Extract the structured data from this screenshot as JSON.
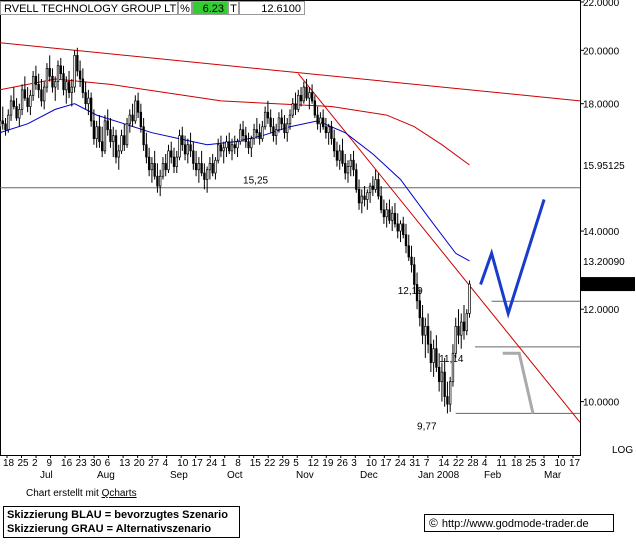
{
  "header": {
    "name": "RVELL TECHNOLOGY GROUP LTD",
    "pct_label": "%",
    "pct_value": "6.23",
    "t_label": "T",
    "price": "12.6100"
  },
  "colors": {
    "pct_bg": "#33cc33",
    "ma_red": "#cc0000",
    "ma_blue": "#0000cc",
    "trend_red": "#cc0000",
    "scenario_blue": "#1a3ccc",
    "scenario_gray": "#aaaaaa",
    "badge_red_text": "#ee0000",
    "badge_black_bg": "#000000"
  },
  "footer": {
    "credit_prefix": "Chart erstellt mit",
    "credit_link": "Qcharts",
    "note_line1": "Skizzierung BLAU = bevorzugtes Szenario",
    "note_line2": "Skizzierung GRAU = Alternativszenario",
    "copyright_icon": "copyright-icon",
    "site": "http://www.godmode-trader.de"
  },
  "chart_data": {
    "type": "candlestick",
    "y_scale": "log",
    "ylim": [
      9.0,
      22.0
    ],
    "yticks": [
      {
        "v": 22.0,
        "label": "22.0000"
      },
      {
        "v": 20.0,
        "label": "20.0000"
      },
      {
        "v": 18.0,
        "label": "18.0000"
      },
      {
        "v": 14.0,
        "label": "14.0000"
      },
      {
        "v": 12.0,
        "label": "12.0000"
      },
      {
        "v": 10.0,
        "label": "10.0000"
      }
    ],
    "y_axis_extra": "LOG",
    "price_badges": [
      {
        "v": 15.95125,
        "label": "15.95125",
        "style": "red"
      },
      {
        "v": 13.2009,
        "label": "13.20090",
        "style": "plain"
      },
      {
        "v": 12.61,
        "label": "12.6100",
        "style": "black"
      }
    ],
    "x_day_labels": [
      "18",
      "25",
      "2",
      "9",
      "16",
      "23",
      "30",
      "6",
      "13",
      "20",
      "27",
      "4",
      "10",
      "17",
      "24",
      "1",
      "8",
      "15",
      "22",
      "29",
      "5",
      "12",
      "19",
      "26",
      "3",
      "10",
      "17",
      "24",
      "31",
      "7",
      "14",
      "22",
      "28",
      "4",
      "11",
      "18",
      "25",
      "3",
      "10",
      "17"
    ],
    "x_month_labels": [
      "Jul",
      "Aug",
      "Sep",
      "Oct",
      "Nov",
      "Dec",
      "Jan 2008",
      "Feb",
      "Mar"
    ],
    "x_range": [
      0,
      210
    ],
    "levels": [
      {
        "v": 15.25,
        "label": "15,25",
        "x_start": 0,
        "x_end": 210
      },
      {
        "v": 12.19,
        "label": "12,19",
        "x_start": 178,
        "x_end": 210
      },
      {
        "v": 11.14,
        "label": "11,14",
        "x_start": 172,
        "x_end": 210
      },
      {
        "v": 9.77,
        "label": "9,77",
        "x_start": 165,
        "x_end": 210
      }
    ],
    "candles": [
      [
        0,
        17.2,
        17.6,
        16.8,
        17.4
      ],
      [
        1,
        17.4,
        17.9,
        17.1,
        17.3
      ],
      [
        2,
        17.3,
        17.5,
        16.9,
        17.1
      ],
      [
        3,
        17.1,
        17.8,
        17.0,
        17.6
      ],
      [
        4,
        17.6,
        18.3,
        17.4,
        18.1
      ],
      [
        5,
        18.1,
        18.6,
        17.8,
        17.9
      ],
      [
        6,
        17.9,
        18.2,
        17.4,
        17.5
      ],
      [
        7,
        17.5,
        18.0,
        17.2,
        17.8
      ],
      [
        8,
        17.8,
        18.7,
        17.6,
        18.5
      ],
      [
        9,
        18.5,
        19.0,
        18.1,
        18.2
      ],
      [
        10,
        18.2,
        18.6,
        17.7,
        17.9
      ],
      [
        11,
        17.9,
        18.5,
        17.6,
        18.3
      ],
      [
        12,
        18.3,
        19.2,
        18.1,
        19.0
      ],
      [
        13,
        19.0,
        19.4,
        18.5,
        18.7
      ],
      [
        14,
        18.7,
        19.1,
        18.2,
        18.5
      ],
      [
        15,
        18.5,
        18.9,
        17.9,
        18.1
      ],
      [
        16,
        18.1,
        18.8,
        17.8,
        18.6
      ],
      [
        17,
        18.6,
        19.5,
        18.4,
        19.3
      ],
      [
        18,
        19.3,
        19.8,
        18.8,
        19.0
      ],
      [
        19,
        19.0,
        19.3,
        18.4,
        18.6
      ],
      [
        20,
        18.6,
        19.0,
        18.1,
        18.8
      ],
      [
        21,
        18.8,
        19.6,
        18.5,
        19.4
      ],
      [
        22,
        19.4,
        19.7,
        18.9,
        19.1
      ],
      [
        23,
        19.1,
        19.4,
        18.3,
        18.5
      ],
      [
        24,
        18.5,
        19.0,
        18.0,
        18.8
      ],
      [
        25,
        18.8,
        19.2,
        18.2,
        18.4
      ],
      [
        26,
        18.4,
        18.9,
        17.9,
        18.6
      ],
      [
        27,
        18.6,
        20.0,
        18.4,
        19.8
      ],
      [
        28,
        19.8,
        20.1,
        19.0,
        19.2
      ],
      [
        29,
        19.2,
        19.6,
        18.6,
        18.9
      ],
      [
        30,
        18.9,
        19.3,
        18.2,
        18.4
      ],
      [
        31,
        18.4,
        18.8,
        17.8,
        18.0
      ],
      [
        32,
        18.0,
        18.5,
        17.6,
        18.2
      ],
      [
        33,
        18.2,
        18.4,
        17.2,
        17.4
      ],
      [
        34,
        17.4,
        17.8,
        16.6,
        16.8
      ],
      [
        35,
        16.8,
        17.4,
        16.5,
        17.2
      ],
      [
        36,
        17.2,
        17.6,
        16.5,
        16.7
      ],
      [
        37,
        16.7,
        17.2,
        16.2,
        16.4
      ],
      [
        38,
        16.4,
        17.6,
        16.3,
        17.4
      ],
      [
        39,
        17.4,
        17.8,
        16.9,
        17.1
      ],
      [
        40,
        17.1,
        17.5,
        16.5,
        16.7
      ],
      [
        41,
        16.7,
        17.2,
        16.2,
        16.9
      ],
      [
        42,
        16.9,
        17.1,
        16.0,
        16.2
      ],
      [
        43,
        16.2,
        16.6,
        15.8,
        16.4
      ],
      [
        44,
        16.4,
        17.1,
        16.3,
        16.9
      ],
      [
        45,
        16.9,
        17.3,
        16.4,
        16.6
      ],
      [
        46,
        16.6,
        17.5,
        16.5,
        17.3
      ],
      [
        47,
        17.3,
        17.8,
        17.0,
        17.6
      ],
      [
        48,
        17.6,
        18.0,
        17.2,
        17.4
      ],
      [
        49,
        17.4,
        18.3,
        17.3,
        18.1
      ],
      [
        50,
        18.1,
        18.4,
        17.5,
        17.7
      ],
      [
        51,
        17.7,
        18.0,
        17.0,
        17.2
      ],
      [
        52,
        17.2,
        17.5,
        16.4,
        16.6
      ],
      [
        53,
        16.6,
        17.0,
        16.0,
        16.2
      ],
      [
        54,
        16.2,
        16.5,
        15.6,
        15.8
      ],
      [
        55,
        15.8,
        16.2,
        15.4,
        16.0
      ],
      [
        56,
        16.0,
        16.4,
        15.5,
        15.6
      ],
      [
        57,
        15.6,
        16.0,
        15.1,
        15.3
      ],
      [
        58,
        15.3,
        15.8,
        15.0,
        15.6
      ],
      [
        59,
        15.6,
        16.2,
        15.5,
        16.0
      ],
      [
        60,
        16.0,
        16.3,
        15.6,
        15.8
      ],
      [
        61,
        15.8,
        16.6,
        15.7,
        16.4
      ],
      [
        62,
        16.4,
        16.7,
        16.0,
        16.2
      ],
      [
        63,
        16.2,
        16.5,
        15.7,
        15.9
      ],
      [
        64,
        15.9,
        16.4,
        15.7,
        16.2
      ],
      [
        65,
        16.2,
        17.1,
        16.1,
        16.9
      ],
      [
        66,
        16.9,
        17.2,
        16.4,
        16.6
      ],
      [
        67,
        16.6,
        16.9,
        16.1,
        16.3
      ],
      [
        68,
        16.3,
        16.8,
        16.0,
        16.6
      ],
      [
        69,
        16.6,
        17.0,
        16.2,
        16.4
      ],
      [
        70,
        16.4,
        16.7,
        15.8,
        16.0
      ],
      [
        71,
        16.0,
        16.4,
        15.6,
        15.8
      ],
      [
        72,
        15.8,
        16.2,
        15.4,
        16.0
      ],
      [
        73,
        16.0,
        16.4,
        15.6,
        15.7
      ],
      [
        74,
        15.7,
        16.0,
        15.2,
        15.5
      ],
      [
        75,
        15.5,
        15.9,
        15.1,
        15.8
      ],
      [
        76,
        15.8,
        16.2,
        15.5,
        16.0
      ],
      [
        77,
        16.0,
        16.3,
        15.6,
        15.7
      ],
      [
        78,
        15.7,
        16.2,
        15.5,
        16.1
      ],
      [
        79,
        16.1,
        16.8,
        16.0,
        16.6
      ],
      [
        80,
        16.6,
        16.9,
        16.2,
        16.4
      ],
      [
        81,
        16.4,
        16.7,
        16.0,
        16.5
      ],
      [
        82,
        16.5,
        16.9,
        16.2,
        16.7
      ],
      [
        83,
        16.7,
        17.0,
        16.3,
        16.4
      ],
      [
        84,
        16.4,
        16.8,
        16.1,
        16.6
      ],
      [
        85,
        16.6,
        16.9,
        16.3,
        16.5
      ],
      [
        86,
        16.5,
        16.8,
        16.2,
        16.7
      ],
      [
        87,
        16.7,
        17.3,
        16.6,
        17.1
      ],
      [
        88,
        17.1,
        17.4,
        16.7,
        16.9
      ],
      [
        89,
        16.9,
        17.2,
        16.5,
        16.7
      ],
      [
        90,
        16.7,
        17.0,
        16.3,
        16.5
      ],
      [
        91,
        16.5,
        16.9,
        16.2,
        16.8
      ],
      [
        92,
        16.8,
        17.3,
        16.6,
        17.1
      ],
      [
        93,
        17.1,
        17.5,
        16.8,
        17.0
      ],
      [
        94,
        17.0,
        17.3,
        16.6,
        16.8
      ],
      [
        95,
        16.8,
        17.4,
        16.7,
        17.2
      ],
      [
        96,
        17.2,
        17.9,
        17.1,
        17.7
      ],
      [
        97,
        17.7,
        18.1,
        17.3,
        17.5
      ],
      [
        98,
        17.5,
        17.8,
        17.0,
        17.2
      ],
      [
        99,
        17.2,
        17.5,
        16.7,
        16.9
      ],
      [
        100,
        16.9,
        17.3,
        16.6,
        17.1
      ],
      [
        101,
        17.1,
        17.7,
        17.0,
        17.5
      ],
      [
        102,
        17.5,
        17.8,
        17.1,
        17.3
      ],
      [
        103,
        17.3,
        17.6,
        16.8,
        17.0
      ],
      [
        104,
        17.0,
        17.5,
        16.7,
        17.3
      ],
      [
        105,
        17.3,
        17.8,
        17.1,
        17.6
      ],
      [
        106,
        17.6,
        18.2,
        17.5,
        18.0
      ],
      [
        107,
        18.0,
        18.4,
        17.6,
        17.8
      ],
      [
        108,
        17.8,
        18.5,
        17.7,
        18.3
      ],
      [
        109,
        18.3,
        18.6,
        17.9,
        18.1
      ],
      [
        110,
        18.1,
        18.8,
        18.0,
        18.6
      ],
      [
        111,
        18.6,
        18.9,
        18.1,
        18.2
      ],
      [
        112,
        18.2,
        18.6,
        17.8,
        18.4
      ],
      [
        113,
        18.4,
        18.7,
        18.0,
        18.1
      ],
      [
        114,
        18.1,
        18.3,
        17.5,
        17.6
      ],
      [
        115,
        17.6,
        17.9,
        17.1,
        17.3
      ],
      [
        116,
        17.3,
        17.7,
        17.0,
        17.5
      ],
      [
        117,
        17.5,
        17.8,
        17.1,
        17.2
      ],
      [
        118,
        17.2,
        17.5,
        16.8,
        17.0
      ],
      [
        119,
        17.0,
        17.3,
        16.6,
        17.2
      ],
      [
        120,
        17.2,
        17.4,
        16.6,
        16.8
      ],
      [
        121,
        16.8,
        17.1,
        16.2,
        16.4
      ],
      [
        122,
        16.4,
        16.7,
        15.9,
        16.1
      ],
      [
        123,
        16.1,
        16.6,
        15.8,
        16.4
      ],
      [
        124,
        16.4,
        16.8,
        15.9,
        16.0
      ],
      [
        125,
        16.0,
        16.3,
        15.5,
        15.7
      ],
      [
        126,
        15.7,
        16.1,
        15.4,
        15.9
      ],
      [
        127,
        15.9,
        16.3,
        15.6,
        16.1
      ],
      [
        128,
        16.1,
        16.4,
        15.6,
        15.8
      ],
      [
        129,
        15.8,
        16.0,
        15.1,
        15.2
      ],
      [
        130,
        15.2,
        15.5,
        14.6,
        14.8
      ],
      [
        131,
        14.8,
        15.2,
        14.5,
        15.0
      ],
      [
        132,
        15.0,
        15.3,
        14.7,
        14.9
      ],
      [
        133,
        14.9,
        15.2,
        14.6,
        15.1
      ],
      [
        134,
        15.1,
        15.4,
        14.8,
        15.3
      ],
      [
        135,
        15.3,
        15.6,
        15.0,
        15.2
      ],
      [
        136,
        15.2,
        15.8,
        15.1,
        15.5
      ],
      [
        137,
        15.5,
        15.7,
        14.9,
        15.0
      ],
      [
        138,
        15.0,
        15.3,
        14.5,
        14.6
      ],
      [
        139,
        14.6,
        14.9,
        14.2,
        14.4
      ],
      [
        140,
        14.4,
        14.8,
        14.1,
        14.6
      ],
      [
        141,
        14.6,
        14.9,
        14.2,
        14.3
      ],
      [
        142,
        14.3,
        14.7,
        14.0,
        14.5
      ],
      [
        143,
        14.5,
        14.8,
        14.1,
        14.2
      ],
      [
        144,
        14.2,
        14.5,
        13.8,
        14.0
      ],
      [
        145,
        14.0,
        14.3,
        13.7,
        14.2
      ],
      [
        146,
        14.2,
        14.4,
        13.8,
        13.9
      ],
      [
        147,
        13.9,
        14.2,
        13.4,
        13.6
      ],
      [
        148,
        13.6,
        13.9,
        13.2,
        13.3
      ],
      [
        149,
        13.3,
        13.6,
        12.9,
        13.1
      ],
      [
        150,
        13.1,
        13.3,
        12.4,
        12.6
      ],
      [
        151,
        12.6,
        12.9,
        12.0,
        12.2
      ],
      [
        152,
        12.2,
        12.5,
        11.6,
        11.8
      ],
      [
        153,
        11.8,
        12.1,
        11.2,
        11.4
      ],
      [
        154,
        11.4,
        11.8,
        10.9,
        11.6
      ],
      [
        155,
        11.6,
        11.9,
        11.0,
        11.2
      ],
      [
        156,
        11.2,
        11.5,
        10.6,
        10.8
      ],
      [
        157,
        10.8,
        11.3,
        10.5,
        11.1
      ],
      [
        158,
        11.1,
        11.4,
        10.6,
        10.7
      ],
      [
        159,
        10.7,
        11.0,
        10.2,
        10.4
      ],
      [
        160,
        10.4,
        10.8,
        10.0,
        10.6
      ],
      [
        161,
        10.6,
        10.9,
        9.9,
        10.1
      ],
      [
        162,
        10.1,
        10.4,
        9.77,
        9.95
      ],
      [
        163,
        9.95,
        10.5,
        9.8,
        10.4
      ],
      [
        164,
        10.4,
        11.2,
        10.3,
        11.0
      ],
      [
        165,
        11.0,
        11.8,
        10.9,
        11.6
      ],
      [
        166,
        11.6,
        12.0,
        11.2,
        11.4
      ],
      [
        167,
        11.4,
        11.9,
        11.1,
        11.7
      ],
      [
        168,
        11.7,
        12.1,
        11.3,
        11.5
      ],
      [
        169,
        11.5,
        12.0,
        11.4,
        11.9
      ],
      [
        170,
        11.9,
        12.7,
        11.8,
        12.61
      ]
    ],
    "series": [
      {
        "name": "",
        "color_key": "ma_red",
        "x": [
          0,
          20,
          40,
          60,
          80,
          100,
          120,
          140,
          150,
          160,
          170
        ],
        "y": [
          18.5,
          18.9,
          18.7,
          18.4,
          18.1,
          18.0,
          17.9,
          17.6,
          17.2,
          16.6,
          15.95
        ]
      },
      {
        "name": "",
        "color_key": "ma_blue",
        "x": [
          0,
          10,
          20,
          27,
          35,
          45,
          55,
          65,
          75,
          85,
          95,
          105,
          115,
          125,
          135,
          145,
          155,
          165,
          170
        ],
        "y": [
          17.0,
          17.3,
          17.8,
          18.0,
          17.6,
          17.3,
          17.0,
          16.8,
          16.6,
          16.7,
          16.9,
          17.2,
          17.4,
          17.0,
          16.3,
          15.5,
          14.4,
          13.4,
          13.2
        ]
      }
    ],
    "trendlines": [
      {
        "color_key": "ma_red",
        "x": [
          0,
          210
        ],
        "y": [
          20.3,
          18.1
        ]
      },
      {
        "color_key": "trend_red",
        "x": [
          108,
          210
        ],
        "y": [
          19.1,
          9.6
        ]
      }
    ],
    "scenario_blue": {
      "x": [
        174,
        178,
        184,
        197
      ],
      "y": [
        12.6,
        13.4,
        11.9,
        14.9
      ]
    },
    "scenario_gray": {
      "x": [
        182,
        188,
        193
      ],
      "y": [
        11.0,
        11.0,
        9.77
      ]
    }
  }
}
